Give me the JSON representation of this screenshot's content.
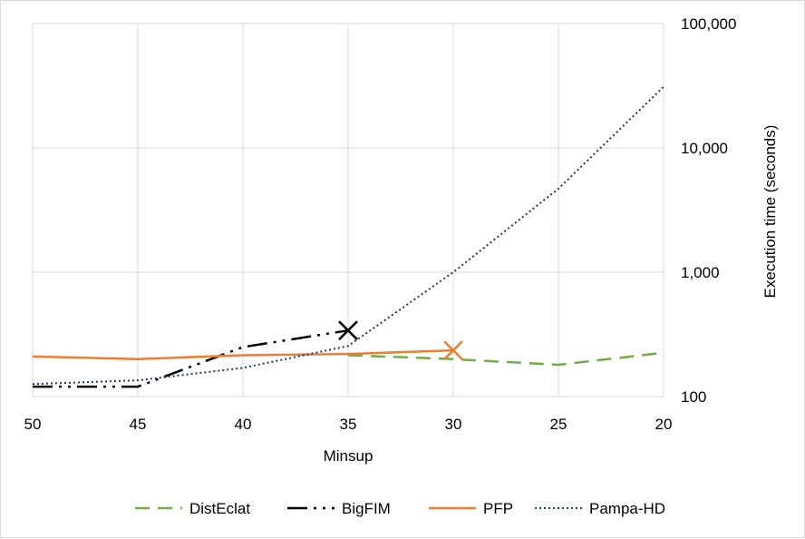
{
  "chart_data": {
    "type": "line",
    "title": "",
    "xlabel": "Minsup",
    "ylabel": "Execution time (seconds)",
    "x_ticks": [
      "50",
      "45",
      "40",
      "35",
      "30",
      "25",
      "20"
    ],
    "x_reversed": true,
    "xlim": [
      50,
      20
    ],
    "y_scale": "log",
    "ylim": [
      100,
      100000
    ],
    "y_ticks": [
      100,
      1000,
      10000,
      100000
    ],
    "y_tick_labels": [
      "100",
      "1,000",
      "10,000",
      "100,000"
    ],
    "y_axis_position": "right",
    "grid": true,
    "legend_position": "bottom",
    "series": [
      {
        "name": "DistEclat",
        "color": "#70ad47",
        "dash": "dashed",
        "x": [
          35,
          30,
          25,
          20
        ],
        "y": [
          215,
          200,
          180,
          225
        ]
      },
      {
        "name": "BigFIM",
        "color": "#000000",
        "dash": "dash-dot-dot",
        "x": [
          50,
          45,
          40,
          35
        ],
        "y": [
          120,
          120,
          250,
          340
        ],
        "end_marker": "x"
      },
      {
        "name": "PFP",
        "color": "#ed7d31",
        "dash": "solid",
        "x": [
          50,
          45,
          40,
          35,
          30
        ],
        "y": [
          210,
          200,
          215,
          220,
          235
        ],
        "end_marker": "x"
      },
      {
        "name": "Pampa-HD",
        "color": "#203864",
        "dash": "dotted",
        "x": [
          50,
          45,
          40,
          35,
          30,
          25,
          20
        ],
        "y": [
          126,
          135,
          170,
          255,
          1000,
          4700,
          31000
        ]
      }
    ]
  }
}
